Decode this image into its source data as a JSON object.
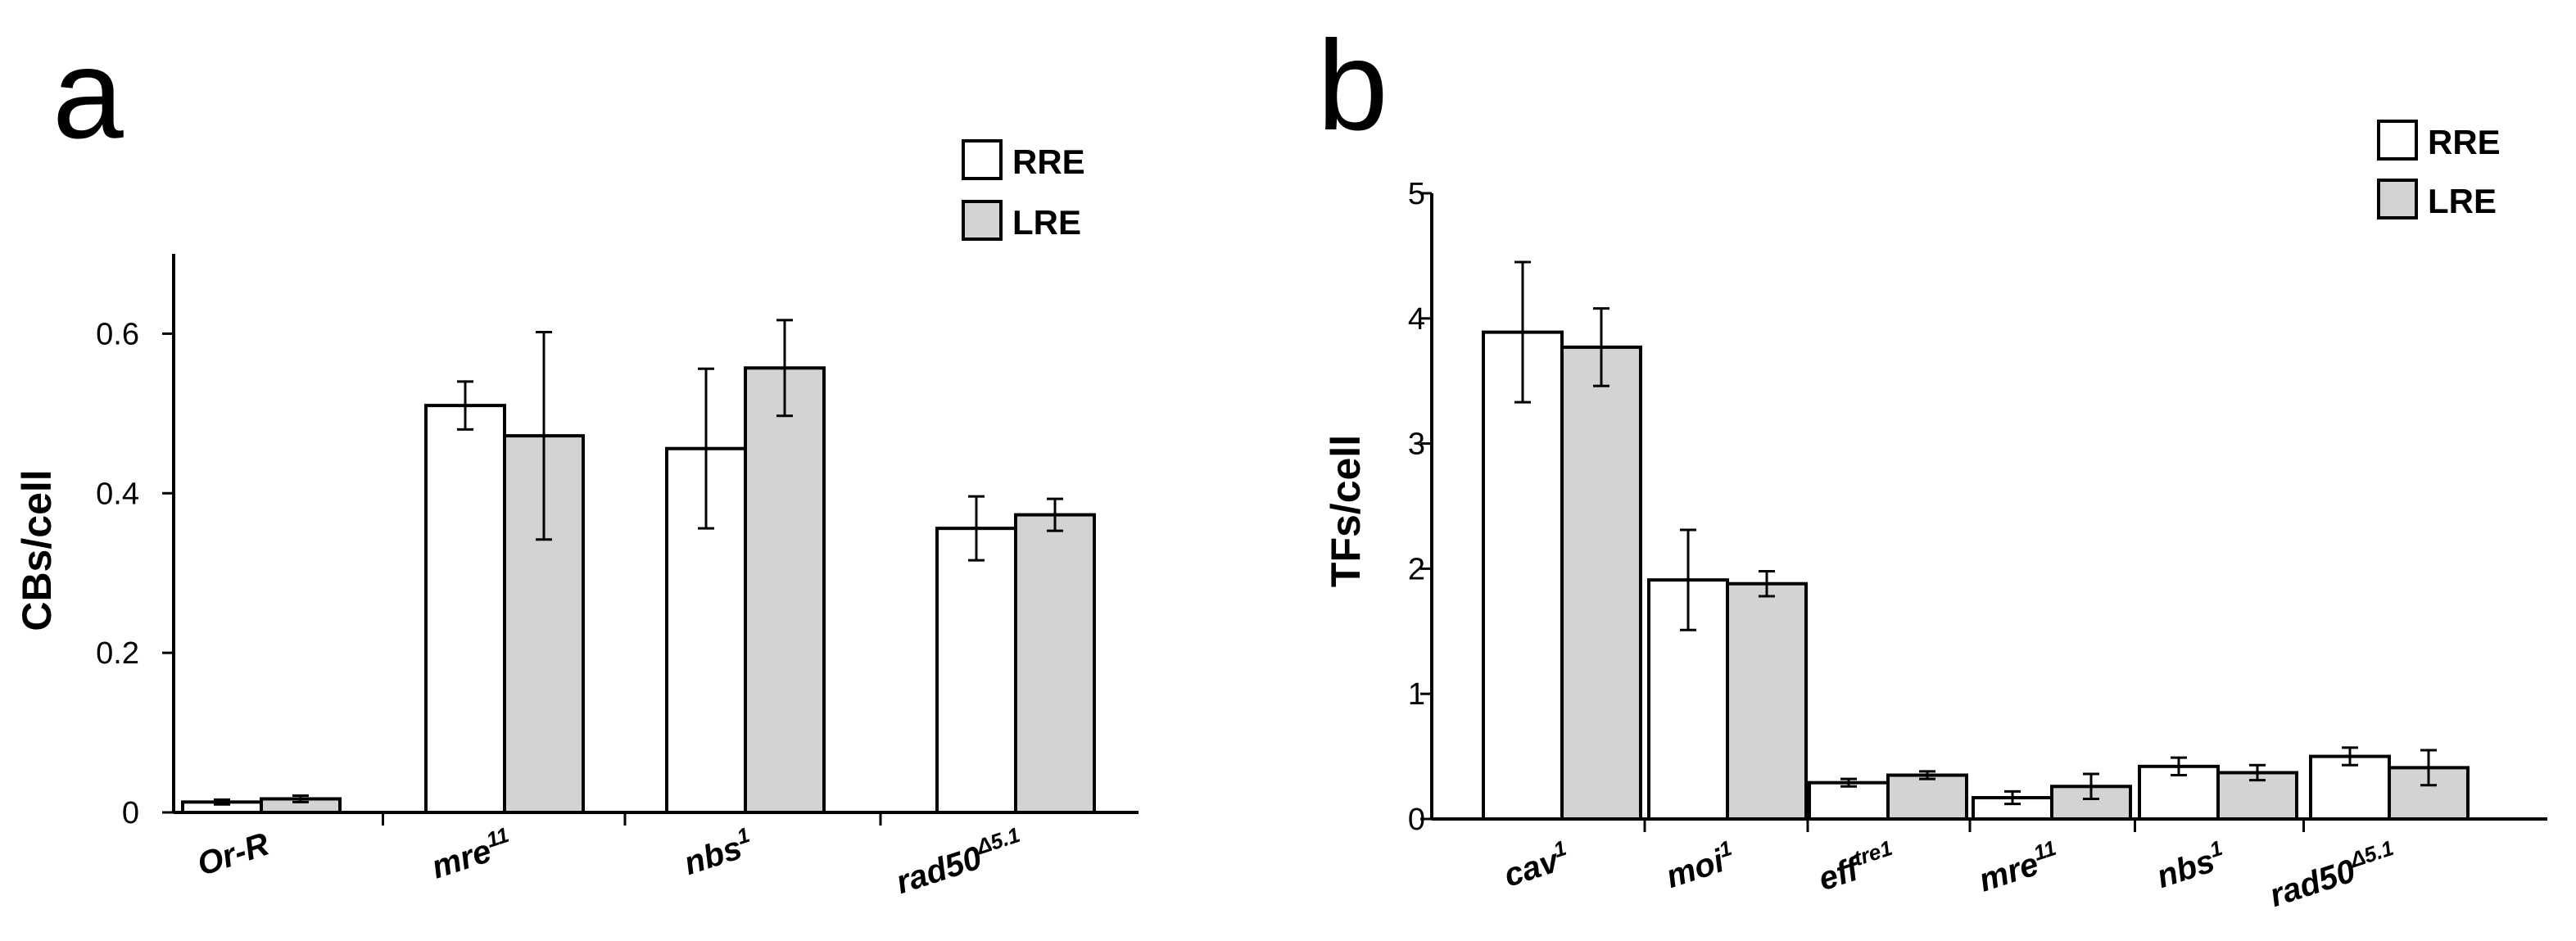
{
  "panels": [
    "a",
    "b"
  ],
  "legend": {
    "items": [
      {
        "label": "RRE",
        "color": "#ffffff"
      },
      {
        "label": "LRE",
        "color": "#d3d3d3"
      }
    ]
  },
  "chart_data": [
    {
      "type": "bar",
      "panel": "a",
      "ylabel": "CBs/cell",
      "ylim": [
        0,
        0.7
      ],
      "yticks": [
        0,
        0.2,
        0.4,
        0.6
      ],
      "ytick_labels": [
        "0",
        "0.2",
        "0.4",
        "0.6"
      ],
      "categories": [
        {
          "base": "Or-R",
          "sup": ""
        },
        {
          "base": "mre",
          "sup": "11"
        },
        {
          "base": "nbs",
          "sup": "1"
        },
        {
          "base": "rad50",
          "sup": "Δ5.1"
        }
      ],
      "series": [
        {
          "name": "RRE",
          "color": "#ffffff",
          "values": [
            0.013,
            0.51,
            0.456,
            0.356
          ],
          "errors": [
            0.003,
            0.03,
            0.1,
            0.04
          ]
        },
        {
          "name": "LRE",
          "color": "#d3d3d3",
          "values": [
            0.017,
            0.472,
            0.557,
            0.373
          ],
          "errors": [
            0.004,
            0.13,
            0.06,
            0.02
          ]
        }
      ],
      "legend_position": "top-right"
    },
    {
      "type": "bar",
      "panel": "b",
      "ylabel": "TFs/cell",
      "ylim": [
        0,
        5
      ],
      "yticks": [
        0,
        1,
        2,
        3,
        4,
        5
      ],
      "ytick_labels": [
        "0",
        "1",
        "2",
        "3",
        "4",
        "5"
      ],
      "categories": [
        {
          "base": "cav",
          "sup": "1"
        },
        {
          "base": "moi",
          "sup": "1"
        },
        {
          "base": "eff",
          "sup": "tre1"
        },
        {
          "base": "mre",
          "sup": "11"
        },
        {
          "base": "nbs",
          "sup": "1"
        },
        {
          "base": "rad50",
          "sup": "Δ5.1"
        }
      ],
      "series": [
        {
          "name": "RRE",
          "color": "#ffffff",
          "values": [
            3.89,
            1.91,
            0.29,
            0.17,
            0.42,
            0.5
          ],
          "errors": [
            0.56,
            0.4,
            0.03,
            0.05,
            0.07,
            0.07
          ]
        },
        {
          "name": "LRE",
          "color": "#d3d3d3",
          "values": [
            3.77,
            1.88,
            0.35,
            0.26,
            0.37,
            0.41
          ],
          "errors": [
            0.31,
            0.1,
            0.03,
            0.1,
            0.06,
            0.14
          ]
        }
      ],
      "legend_position": "top-right"
    }
  ]
}
